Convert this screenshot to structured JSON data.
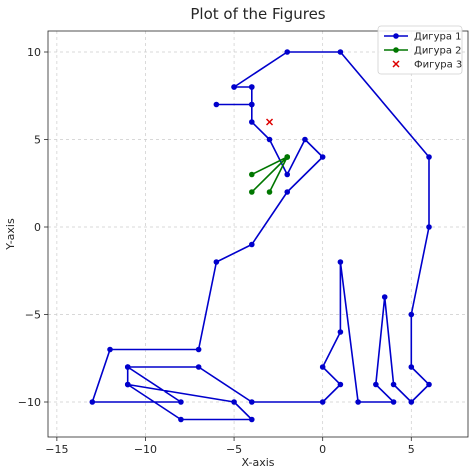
{
  "chart_data": {
    "type": "line",
    "title": "Plot of the Figures",
    "xlabel": "X-axis",
    "ylabel": "Y-axis",
    "xlim": [
      -15.5,
      8.2
    ],
    "ylim": [
      -12,
      11.2
    ],
    "xticks": [
      -15,
      -10,
      -5,
      0,
      5
    ],
    "yticks": [
      -10,
      -5,
      0,
      5,
      10
    ],
    "xtick_labels": [
      "−15",
      "−10",
      "−5",
      "0",
      "5"
    ],
    "ytick_labels": [
      "−10",
      "−5",
      "0",
      "5",
      "10"
    ],
    "grid": true,
    "legend_position": "top-right",
    "series": [
      {
        "name": "Дигура 1",
        "color": "#0000cc",
        "marker": "circle",
        "points": [
          [
            -4,
            8
          ],
          [
            -5,
            8
          ],
          [
            -4,
            8
          ],
          [
            -4,
            7
          ],
          [
            -6,
            7
          ],
          [
            -4,
            7
          ],
          [
            -4,
            6
          ],
          [
            -3,
            5
          ],
          [
            -2,
            3
          ],
          [
            -1,
            5
          ],
          [
            0,
            4
          ],
          [
            -2,
            2
          ],
          [
            -4,
            -1
          ],
          [
            -6,
            -2
          ],
          [
            -7,
            -7
          ],
          [
            -12,
            -7
          ],
          [
            -13,
            -10
          ],
          [
            -8,
            -10
          ],
          [
            -11,
            -8
          ],
          [
            -11,
            -9
          ],
          [
            -5,
            -10
          ],
          [
            -4,
            -11
          ],
          [
            -8,
            -11
          ],
          [
            -11,
            -9
          ],
          [
            -11,
            -8
          ],
          [
            -7,
            -8
          ],
          [
            -4,
            -10
          ],
          [
            0,
            -10
          ],
          [
            1,
            -9
          ],
          [
            0,
            -8
          ],
          [
            1,
            -6
          ],
          [
            1,
            -2
          ],
          [
            2,
            -10
          ],
          [
            4,
            -10
          ],
          [
            3,
            -9
          ],
          [
            3.5,
            -4
          ],
          [
            4,
            -9
          ],
          [
            5,
            -10
          ],
          [
            6,
            -9
          ],
          [
            5,
            -8
          ],
          [
            5,
            -5
          ],
          [
            6,
            0
          ],
          [
            6,
            4
          ],
          [
            1,
            10
          ],
          [
            -2,
            10
          ],
          [
            -5,
            8
          ]
        ]
      },
      {
        "name": "Дигура 2",
        "color": "#007700",
        "marker": "circle",
        "points": [
          [
            -4,
            3
          ],
          [
            -2,
            4
          ],
          [
            -4,
            2
          ],
          [
            -2,
            4
          ],
          [
            -3,
            2
          ],
          [
            -2,
            4
          ]
        ]
      },
      {
        "name": "Фигура 3",
        "color": "#dd0000",
        "marker": "x",
        "scatter": true,
        "points": [
          [
            -3,
            6
          ]
        ]
      }
    ]
  }
}
